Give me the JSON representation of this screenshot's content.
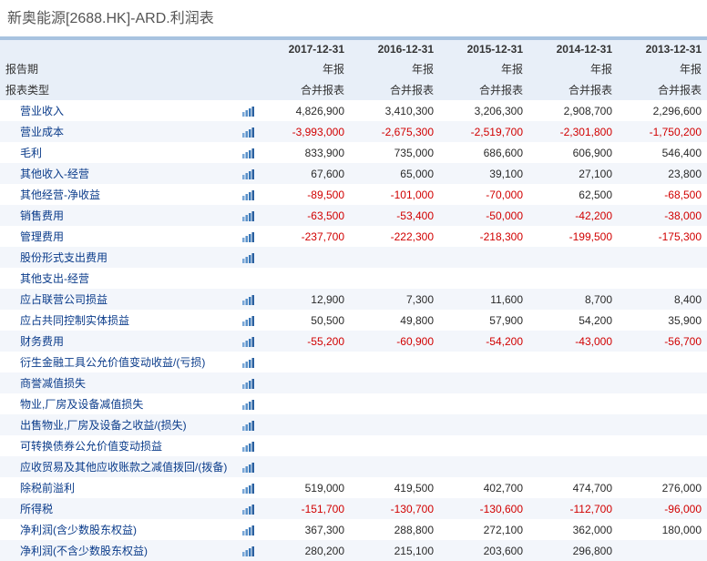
{
  "title": "新奥能源[2688.HK]-ARD.利润表",
  "columns": [
    "2017-12-31",
    "2016-12-31",
    "2015-12-31",
    "2014-12-31",
    "2013-12-31"
  ],
  "period_row": {
    "label": "报告期",
    "values": [
      "年报",
      "年报",
      "年报",
      "年报",
      "年报"
    ]
  },
  "type_row": {
    "label": "报表类型",
    "values": [
      "合并报表",
      "合并报表",
      "合并报表",
      "合并报表",
      "合并报表"
    ]
  },
  "rows": [
    {
      "label": "营业收入",
      "indent": true,
      "icon": true,
      "alt": false,
      "values": [
        4826900,
        3410300,
        3206300,
        2908700,
        2296600
      ]
    },
    {
      "label": "营业成本",
      "indent": true,
      "icon": true,
      "alt": true,
      "values": [
        -3993000,
        -2675300,
        -2519700,
        -2301800,
        -1750200
      ]
    },
    {
      "label": "毛利",
      "indent": true,
      "icon": true,
      "alt": false,
      "values": [
        833900,
        735000,
        686600,
        606900,
        546400
      ]
    },
    {
      "label": "其他收入-经营",
      "indent": true,
      "icon": true,
      "alt": true,
      "values": [
        67600,
        65000,
        39100,
        27100,
        23800
      ]
    },
    {
      "label": "其他经营-净收益",
      "indent": true,
      "icon": true,
      "alt": false,
      "values": [
        -89500,
        -101000,
        -70000,
        62500,
        -68500
      ]
    },
    {
      "label": "销售费用",
      "indent": true,
      "icon": true,
      "alt": true,
      "values": [
        -63500,
        -53400,
        -50000,
        -42200,
        -38000
      ]
    },
    {
      "label": "管理费用",
      "indent": true,
      "icon": true,
      "alt": false,
      "values": [
        -237700,
        -222300,
        -218300,
        -199500,
        -175300
      ]
    },
    {
      "label": "股份形式支出费用",
      "indent": true,
      "icon": true,
      "alt": true,
      "values": [
        null,
        null,
        null,
        null,
        null
      ]
    },
    {
      "label": "其他支出-经营",
      "indent": true,
      "icon": false,
      "alt": false,
      "values": [
        null,
        null,
        null,
        null,
        null
      ]
    },
    {
      "label": "应占联营公司损益",
      "indent": true,
      "icon": true,
      "alt": true,
      "values": [
        12900,
        7300,
        11600,
        8700,
        8400
      ]
    },
    {
      "label": "应占共同控制实体损益",
      "indent": true,
      "icon": true,
      "alt": false,
      "values": [
        50500,
        49800,
        57900,
        54200,
        35900
      ]
    },
    {
      "label": "财务费用",
      "indent": true,
      "icon": true,
      "alt": true,
      "values": [
        -55200,
        -60900,
        -54200,
        -43000,
        -56700
      ]
    },
    {
      "label": "衍生金融工具公允价值变动收益/(亏损)",
      "indent": true,
      "icon": true,
      "alt": false,
      "values": [
        null,
        null,
        null,
        null,
        null
      ]
    },
    {
      "label": "商誉减值损失",
      "indent": true,
      "icon": true,
      "alt": true,
      "values": [
        null,
        null,
        null,
        null,
        null
      ]
    },
    {
      "label": "物业,厂房及设备减值损失",
      "indent": true,
      "icon": true,
      "alt": false,
      "values": [
        null,
        null,
        null,
        null,
        null
      ]
    },
    {
      "label": "出售物业,厂房及设备之收益/(损失)",
      "indent": true,
      "icon": true,
      "alt": true,
      "values": [
        null,
        null,
        null,
        null,
        null
      ]
    },
    {
      "label": "可转换债券公允价值变动损益",
      "indent": true,
      "icon": true,
      "alt": false,
      "values": [
        null,
        null,
        null,
        null,
        null
      ]
    },
    {
      "label": "应收贸易及其他应收账款之减值拨回/(拨备)",
      "indent": true,
      "icon": true,
      "alt": true,
      "values": [
        null,
        null,
        null,
        null,
        null
      ]
    },
    {
      "label": "除税前溢利",
      "indent": true,
      "icon": true,
      "alt": false,
      "values": [
        519000,
        419500,
        402700,
        474700,
        276000
      ]
    },
    {
      "label": "所得税",
      "indent": true,
      "icon": true,
      "alt": true,
      "values": [
        -151700,
        -130700,
        -130600,
        -112700,
        -96000
      ]
    },
    {
      "label": "净利润(含少数股东权益)",
      "indent": true,
      "icon": true,
      "alt": false,
      "values": [
        367300,
        288800,
        272100,
        362000,
        180000
      ]
    },
    {
      "label": "净利润(不含少数股东权益)",
      "indent": true,
      "icon": true,
      "alt": true,
      "values": [
        280200,
        215100,
        203600,
        296800,
        null
      ]
    }
  ],
  "colors": {
    "band": "#a8c3e0",
    "header_bg": "#e8eff8",
    "alt_bg": "#f3f6fb",
    "label_link": "#0a3b8a",
    "negative": "#d10000",
    "positive": "#2a2a2a",
    "icon_bars": [
      "#7aa8d8",
      "#5a90c8",
      "#3a78b8",
      "#2a60a0"
    ]
  }
}
